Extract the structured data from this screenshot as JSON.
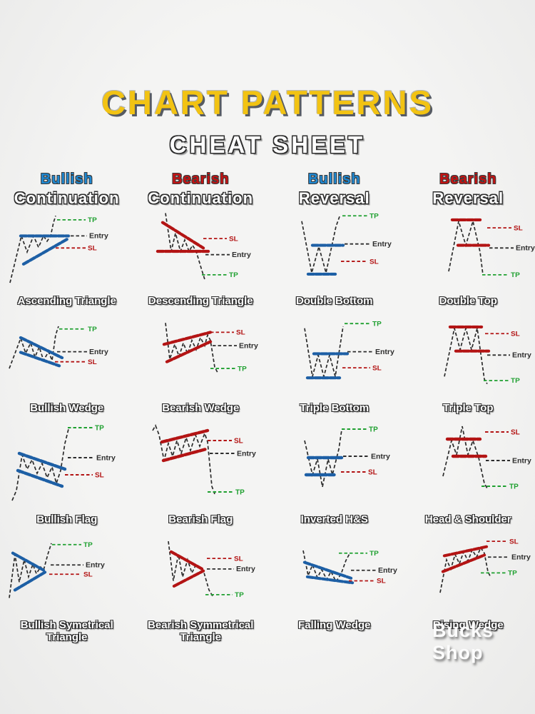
{
  "header": {
    "title": "CHART PATTERNS",
    "subtitle": "CHEAT SHEET"
  },
  "watermark": "Bucks Shop",
  "colors": {
    "blue": "#1d5fa5",
    "red": "#b31414",
    "green": "#1fa030",
    "dark": "#2d2d2d",
    "price": "#2b2b2b",
    "title_gold": "#f2c313",
    "header_blue": "#1e88d2",
    "header_red": "#c51212"
  },
  "columns": [
    {
      "tone": "Bullish",
      "tone_color": "blue",
      "type": "Continuation"
    },
    {
      "tone": "Bearish",
      "tone_color": "red",
      "type": "Continuation"
    },
    {
      "tone": "Bullish",
      "tone_color": "blue",
      "type": "Reversal"
    },
    {
      "tone": "Bearish",
      "tone_color": "red",
      "type": "Reversal"
    }
  ],
  "levels_legend": [
    "TP",
    "Entry",
    "SL"
  ],
  "patterns": [
    {
      "name": "Ascending Triangle",
      "price": "14,112 30,42 38,66 47,42 54,59 61,42 66,50 71,42 75,22 78,12",
      "lines": [
        [
          29,
          42,
          96,
          42,
          "blue"
        ],
        [
          33,
          84,
          94,
          47,
          "blue"
        ]
      ],
      "levels": [
        [
          "TP",
          "green",
          80,
          120,
          18
        ],
        [
          "Entry",
          "dark",
          99,
          122,
          42
        ],
        [
          "SL",
          "red",
          78,
          120,
          60
        ]
      ]
    },
    {
      "name": "Descending Triangle",
      "price": "44,8 52,65 58,38 65,65 71,48 77,65 82,56 87,65 94,90 99,107",
      "lines": [
        [
          40,
          22,
          97,
          60,
          "red"
        ],
        [
          33,
          65,
          104,
          65,
          "red"
        ]
      ],
      "levels": [
        [
          "SL",
          "red",
          97,
          130,
          46
        ],
        [
          "Entry",
          "dark",
          100,
          134,
          70
        ],
        [
          "TP",
          "green",
          95,
          130,
          100
        ]
      ]
    },
    {
      "name": "Double Bottom",
      "price": "48,20 62,97 72,58 82,97 96,28 101,13",
      "lines": [
        [
          63,
          56,
          106,
          56,
          "blue"
        ],
        [
          57,
          99,
          95,
          99,
          "blue"
        ]
      ],
      "levels": [
        [
          "TP",
          "green",
          105,
          140,
          12
        ],
        [
          "Entry",
          "dark",
          108,
          144,
          54
        ],
        [
          "SL",
          "red",
          103,
          140,
          80
        ]
      ]
    },
    {
      "name": "Double Top",
      "price": "66,95 80,20 90,56 100,20 110,66 114,100",
      "lines": [
        [
          71,
          18,
          110,
          18,
          "red"
        ],
        [
          79,
          56,
          122,
          56,
          "red"
        ]
      ],
      "levels": [
        [
          "SL",
          "red",
          120,
          154,
          30
        ],
        [
          "Entry",
          "dark",
          123,
          157,
          60
        ],
        [
          "TP",
          "green",
          113,
          150,
          100
        ]
      ]
    },
    {
      "name": "Bullish Wedge",
      "price": "13,80 29,35 36,57 43,42 49,63 55,48 61,68 68,55 73,68 78,30 82,17",
      "lines": [
        [
          29,
          34,
          87,
          64,
          "blue"
        ],
        [
          29,
          56,
          83,
          76,
          "blue"
        ]
      ],
      "levels": [
        [
          "TP",
          "green",
          83,
          120,
          21
        ],
        [
          "Entry",
          "dark",
          80,
          122,
          55
        ],
        [
          "SL",
          "red",
          77,
          120,
          70
        ]
      ]
    },
    {
      "name": "Bearish Wedge",
      "price": "44,12 50,66 57,44 63,62 69,42 75,58 81,38 87,52 93,34 99,46 103,30 107,38 113,78 117,86",
      "lines": [
        [
          42,
          44,
          107,
          26,
          "red"
        ],
        [
          46,
          70,
          107,
          40,
          "red"
        ]
      ],
      "levels": [
        [
          "SL",
          "red",
          107,
          140,
          26
        ],
        [
          "Entry",
          "dark",
          110,
          144,
          46
        ],
        [
          "TP",
          "green",
          107,
          142,
          80
        ]
      ]
    },
    {
      "name": "Triple Bottom",
      "price": "52,20 63,92 71,60 79,92 87,60 95,92 106,17",
      "lines": [
        [
          65,
          58,
          112,
          58,
          "blue"
        ],
        [
          56,
          94,
          101,
          94,
          "blue"
        ]
      ],
      "levels": [
        [
          "TP",
          "green",
          108,
          144,
          13
        ],
        [
          "Entry",
          "dark",
          112,
          148,
          55
        ],
        [
          "SL",
          "red",
          105,
          144,
          79
        ]
      ]
    },
    {
      "name": "Triple Top",
      "price": "60,92 74,20 82,52 90,20 98,52 106,20 116,96 120,103",
      "lines": [
        [
          68,
          18,
          112,
          18,
          "red"
        ],
        [
          76,
          54,
          122,
          54,
          "red"
        ]
      ],
      "levels": [
        [
          "SL",
          "red",
          117,
          150,
          28
        ],
        [
          "Entry",
          "dark",
          120,
          152,
          60
        ],
        [
          "TP",
          "green",
          115,
          150,
          98
        ]
      ]
    },
    {
      "name": "Bullish Flag",
      "price": "17,112 23,98 31,48 38,68 45,55 52,74 59,60 66,80 73,65 79,88 85,70 91,32 96,12",
      "lines": [
        [
          27,
          46,
          91,
          68,
          "blue"
        ],
        [
          25,
          70,
          87,
          92,
          "blue"
        ]
      ],
      "levels": [
        [
          "TP",
          "green",
          95,
          130,
          10
        ],
        [
          "Entry",
          "dark",
          95,
          132,
          52
        ],
        [
          "SL",
          "red",
          91,
          130,
          76
        ]
      ]
    },
    {
      "name": "Bearish Flag",
      "price": "26,14 30,7 35,20 42,56 48,32 54,50 60,28 66,46 73,24 79,42 86,20 92,36 99,18 103,30 109,92 113,103",
      "lines": [
        [
          39,
          30,
          103,
          14,
          "red"
        ],
        [
          41,
          56,
          101,
          40,
          "red"
        ]
      ],
      "levels": [
        [
          "SL",
          "red",
          103,
          137,
          28
        ],
        [
          "Entry",
          "dark",
          106,
          141,
          46
        ],
        [
          "TP",
          "green",
          103,
          139,
          100
        ]
      ]
    },
    {
      "name": "Inverted H&S",
      "price": "52,28 63,76 70,54 77,93 85,54 91,76 100,40 104,13",
      "lines": [
        [
          57,
          52,
          104,
          52,
          "blue"
        ],
        [
          54,
          76,
          95,
          76,
          "blue"
        ]
      ],
      "levels": [
        [
          "TP",
          "green",
          104,
          139,
          12
        ],
        [
          "Entry",
          "dark",
          106,
          142,
          50
        ],
        [
          "SL",
          "red",
          103,
          138,
          72
        ]
      ]
    },
    {
      "name": "Head & Shoulder",
      "price": "58,78 70,28 77,48 85,8 93,48 100,28 108,52 116,88 120,95",
      "lines": [
        [
          64,
          26,
          110,
          26,
          "red"
        ],
        [
          72,
          50,
          118,
          50,
          "red"
        ]
      ],
      "levels": [
        [
          "SL",
          "red",
          117,
          150,
          16
        ],
        [
          "Entry",
          "dark",
          118,
          152,
          56
        ],
        [
          "TP",
          "green",
          112,
          148,
          92
        ]
      ]
    },
    {
      "name": "Bullish Symetrical",
      "name2": "Triangle",
      "price": "13,98 21,32 27,74 34,40 40,66 46,47 51,61 57,51 61,56 67,32 72,15",
      "lines": [
        [
          18,
          30,
          63,
          57,
          "blue"
        ],
        [
          21,
          86,
          63,
          59,
          "blue"
        ]
      ],
      "levels": [
        [
          "TP",
          "green",
          73,
          114,
          17
        ],
        [
          "Entry",
          "dark",
          71,
          117,
          48
        ],
        [
          "SL",
          "red",
          69,
          114,
          62
        ]
      ]
    },
    {
      "name": "Bearish Symmetrical",
      "name2": "Triangle",
      "price": "48,12 55,72 62,32 68,66 75,40 81,60 87,47 92,54 97,56 105,86 111,97",
      "lines": [
        [
          52,
          28,
          97,
          55,
          "red"
        ],
        [
          56,
          80,
          97,
          57,
          "red"
        ]
      ],
      "levels": [
        [
          "SL",
          "red",
          102,
          137,
          38
        ],
        [
          "Entry",
          "dark",
          102,
          140,
          54
        ],
        [
          "TP",
          "green",
          100,
          138,
          93
        ]
      ]
    },
    {
      "name": "Falling Wedge",
      "price": "50,26 57,64 63,48 70,67 76,55 83,70 89,58 96,73 103,62 110,41 115,31",
      "lines": [
        [
          52,
          44,
          117,
          68,
          "blue"
        ],
        [
          56,
          66,
          119,
          75,
          "blue"
        ]
      ],
      "levels": [
        [
          "TP",
          "green",
          100,
          140,
          30
        ],
        [
          "Entry",
          "dark",
          117,
          152,
          56
        ],
        [
          "SL",
          "red",
          114,
          150,
          72
        ]
      ]
    },
    {
      "name": "Rising Wedge",
      "price": "54,90 63,40 69,54 75,32 81,46 87,28 93,42 99,25 105,36 111,22 116,30 121,58 125,67",
      "lines": [
        [
          60,
          34,
          120,
          20,
          "red"
        ],
        [
          58,
          58,
          116,
          33,
          "red"
        ]
      ],
      "levels": [
        [
          "SL",
          "red",
          119,
          148,
          12
        ],
        [
          "Entry",
          "dark",
          121,
          151,
          36
        ],
        [
          "TP",
          "green",
          111,
          146,
          60
        ]
      ]
    }
  ]
}
